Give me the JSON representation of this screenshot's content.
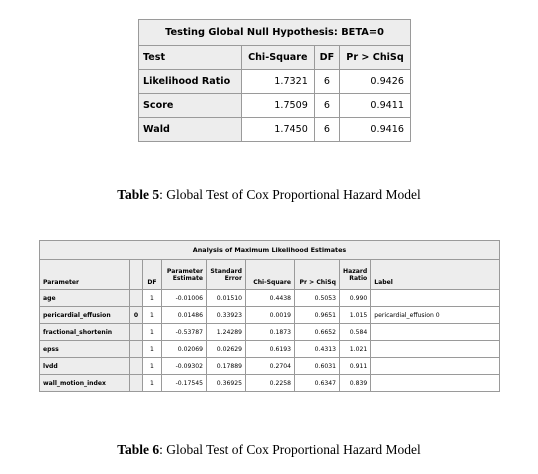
{
  "table1": {
    "title": "Testing Global Null Hypothesis: BETA=0",
    "headers": [
      "Test",
      "Chi-Square",
      "DF",
      "Pr > ChiSq"
    ],
    "rows": [
      {
        "test": "Likelihood Ratio",
        "chisq": "1.7321",
        "df": "6",
        "p": "0.9426"
      },
      {
        "test": "Score",
        "chisq": "1.7509",
        "df": "6",
        "p": "0.9411"
      },
      {
        "test": "Wald",
        "chisq": "1.7450",
        "df": "6",
        "p": "0.9416"
      }
    ]
  },
  "caption1": {
    "label": "Table 5",
    "text": ": Global Test of Cox Proportional Hazard Model"
  },
  "table2": {
    "title": "Analysis of Maximum Likelihood Estimates",
    "headers": {
      "parameter": "Parameter",
      "level": "",
      "df": "DF",
      "estimate_1": "Parameter",
      "estimate_2": "Estimate",
      "se_1": "Standard",
      "se_2": "Error",
      "chisq": "Chi-Square",
      "p": "Pr > ChiSq",
      "hr_1": "Hazard",
      "hr_2": "Ratio",
      "label": "Label"
    },
    "rows": [
      {
        "parameter": "age",
        "level": "",
        "df": "1",
        "estimate": "-0.01006",
        "se": "0.01510",
        "chisq": "0.4438",
        "p": "0.5053",
        "hr": "0.990",
        "label": ""
      },
      {
        "parameter": "pericardial_effusion",
        "level": "0",
        "df": "1",
        "estimate": "0.01486",
        "se": "0.33923",
        "chisq": "0.0019",
        "p": "0.9651",
        "hr": "1.015",
        "label": "pericardial_effusion 0"
      },
      {
        "parameter": "fractional_shortenin",
        "level": "",
        "df": "1",
        "estimate": "-0.53787",
        "se": "1.24289",
        "chisq": "0.1873",
        "p": "0.6652",
        "hr": "0.584",
        "label": ""
      },
      {
        "parameter": "epss",
        "level": "",
        "df": "1",
        "estimate": "0.02069",
        "se": "0.02629",
        "chisq": "0.6193",
        "p": "0.4313",
        "hr": "1.021",
        "label": ""
      },
      {
        "parameter": "lvdd",
        "level": "",
        "df": "1",
        "estimate": "-0.09302",
        "se": "0.17889",
        "chisq": "0.2704",
        "p": "0.6031",
        "hr": "0.911",
        "label": ""
      },
      {
        "parameter": "wall_motion_index",
        "level": "",
        "df": "1",
        "estimate": "-0.17545",
        "se": "0.36925",
        "chisq": "0.2258",
        "p": "0.6347",
        "hr": "0.839",
        "label": ""
      }
    ]
  },
  "caption2": {
    "label": "Table 6",
    "text": ": Global Test of Cox Proportional Hazard Model"
  }
}
